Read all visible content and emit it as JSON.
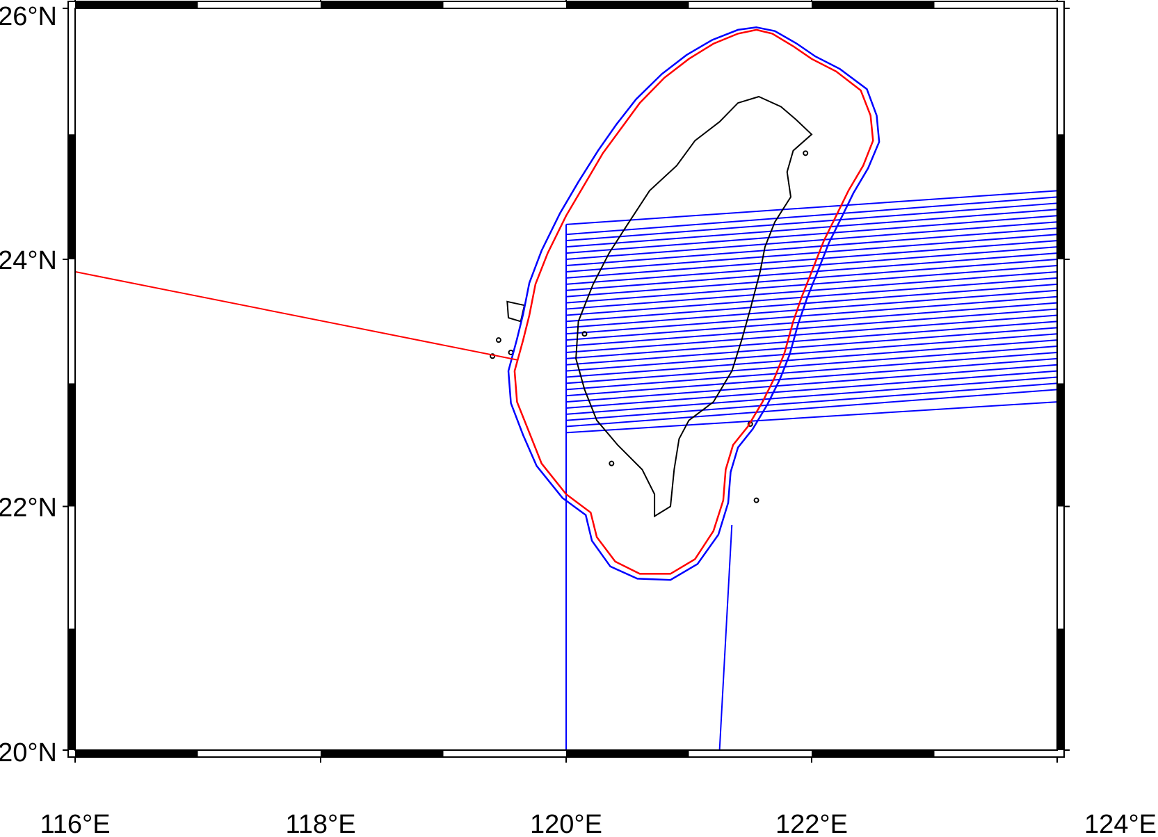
{
  "map": {
    "type": "map",
    "projection": "mercator",
    "lon_range": [
      116,
      124
    ],
    "lat_range": [
      20,
      26
    ],
    "frame_style": "checkerboard",
    "frame_color": "#000000",
    "lon_ticks": [
      {
        "lon": 116,
        "label": "116°E"
      },
      {
        "lon": 118,
        "label": "118°E"
      },
      {
        "lon": 120,
        "label": "120°E"
      },
      {
        "lon": 122,
        "label": "122°E"
      },
      {
        "lon": 124,
        "label": "124°E"
      }
    ],
    "lat_ticks": [
      {
        "lat": 20,
        "label": "20°N"
      },
      {
        "lat": 22,
        "label": "22°N"
      },
      {
        "lat": 24,
        "label": "24°N"
      },
      {
        "lat": 26,
        "label": "26°N"
      }
    ],
    "coastline": {
      "color": "#000000",
      "taiwan": [
        [
          121.57,
          25.3
        ],
        [
          121.75,
          25.22
        ],
        [
          121.87,
          25.12
        ],
        [
          122.0,
          25.0
        ],
        [
          121.85,
          24.87
        ],
        [
          121.8,
          24.7
        ],
        [
          121.83,
          24.5
        ],
        [
          121.7,
          24.3
        ],
        [
          121.62,
          24.1
        ],
        [
          121.58,
          23.9
        ],
        [
          121.5,
          23.6
        ],
        [
          121.43,
          23.35
        ],
        [
          121.35,
          23.1
        ],
        [
          121.2,
          22.85
        ],
        [
          121.0,
          22.7
        ],
        [
          120.92,
          22.55
        ],
        [
          120.88,
          22.3
        ],
        [
          120.85,
          22.0
        ],
        [
          120.72,
          21.92
        ],
        [
          120.72,
          22.1
        ],
        [
          120.62,
          22.3
        ],
        [
          120.42,
          22.5
        ],
        [
          120.25,
          22.7
        ],
        [
          120.15,
          22.95
        ],
        [
          120.08,
          23.2
        ],
        [
          120.1,
          23.5
        ],
        [
          120.22,
          23.8
        ],
        [
          120.35,
          24.05
        ],
        [
          120.5,
          24.28
        ],
        [
          120.68,
          24.55
        ],
        [
          120.9,
          24.75
        ],
        [
          121.05,
          24.95
        ],
        [
          121.25,
          25.1
        ],
        [
          121.4,
          25.25
        ]
      ],
      "penghu": [
        [
          119.52,
          23.66
        ],
        [
          119.66,
          23.63
        ],
        [
          119.63,
          23.5
        ],
        [
          119.53,
          23.53
        ]
      ],
      "small_islands": [
        [
          119.45,
          23.35
        ],
        [
          119.4,
          23.22
        ],
        [
          119.55,
          23.25
        ],
        [
          120.37,
          22.35
        ],
        [
          121.5,
          22.67
        ],
        [
          121.55,
          22.05
        ],
        [
          121.95,
          24.85
        ],
        [
          120.15,
          23.4
        ]
      ]
    },
    "red_boundary": {
      "color": "#ff0000",
      "points": [
        [
          121.55,
          25.83
        ],
        [
          121.68,
          25.8
        ],
        [
          121.85,
          25.7
        ],
        [
          122.0,
          25.6
        ],
        [
          122.2,
          25.5
        ],
        [
          122.4,
          25.35
        ],
        [
          122.48,
          25.15
        ],
        [
          122.5,
          24.95
        ],
        [
          122.42,
          24.75
        ],
        [
          122.3,
          24.55
        ],
        [
          122.2,
          24.35
        ],
        [
          122.1,
          24.15
        ],
        [
          122.0,
          23.9
        ],
        [
          121.92,
          23.7
        ],
        [
          121.85,
          23.5
        ],
        [
          121.78,
          23.25
        ],
        [
          121.7,
          23.05
        ],
        [
          121.6,
          22.85
        ],
        [
          121.48,
          22.65
        ],
        [
          121.36,
          22.5
        ],
        [
          121.3,
          22.3
        ],
        [
          121.28,
          22.05
        ],
        [
          121.2,
          21.8
        ],
        [
          121.05,
          21.57
        ],
        [
          120.85,
          21.45
        ],
        [
          120.6,
          21.45
        ],
        [
          120.4,
          21.55
        ],
        [
          120.25,
          21.75
        ],
        [
          120.2,
          21.95
        ],
        [
          120.0,
          22.1
        ],
        [
          119.8,
          22.35
        ],
        [
          119.7,
          22.6
        ],
        [
          119.6,
          22.85
        ],
        [
          119.58,
          23.1
        ],
        [
          119.65,
          23.35
        ],
        [
          119.7,
          23.55
        ],
        [
          119.75,
          23.8
        ],
        [
          119.85,
          24.05
        ],
        [
          120.0,
          24.35
        ],
        [
          120.15,
          24.6
        ],
        [
          120.3,
          24.85
        ],
        [
          120.45,
          25.05
        ],
        [
          120.6,
          25.25
        ],
        [
          120.8,
          25.45
        ],
        [
          121.0,
          25.6
        ],
        [
          121.2,
          25.72
        ],
        [
          121.4,
          25.8
        ]
      ]
    },
    "blue_boundary": {
      "color": "#0000ff",
      "points": [
        [
          121.55,
          25.85
        ],
        [
          121.7,
          25.82
        ],
        [
          121.88,
          25.72
        ],
        [
          122.03,
          25.62
        ],
        [
          122.23,
          25.52
        ],
        [
          122.45,
          25.36
        ],
        [
          122.53,
          25.15
        ],
        [
          122.55,
          24.94
        ],
        [
          122.46,
          24.73
        ],
        [
          122.34,
          24.53
        ],
        [
          122.24,
          24.33
        ],
        [
          122.14,
          24.13
        ],
        [
          122.04,
          23.88
        ],
        [
          121.96,
          23.68
        ],
        [
          121.89,
          23.48
        ],
        [
          121.82,
          23.23
        ],
        [
          121.74,
          23.03
        ],
        [
          121.64,
          22.83
        ],
        [
          121.52,
          22.63
        ],
        [
          121.4,
          22.48
        ],
        [
          121.34,
          22.28
        ],
        [
          121.32,
          22.03
        ],
        [
          121.24,
          21.77
        ],
        [
          121.07,
          21.53
        ],
        [
          120.85,
          21.4
        ],
        [
          120.58,
          21.41
        ],
        [
          120.36,
          21.51
        ],
        [
          120.21,
          21.72
        ],
        [
          120.16,
          21.93
        ],
        [
          119.97,
          22.07
        ],
        [
          119.76,
          22.33
        ],
        [
          119.65,
          22.58
        ],
        [
          119.55,
          22.84
        ],
        [
          119.53,
          23.1
        ],
        [
          119.6,
          23.36
        ],
        [
          119.65,
          23.56
        ],
        [
          119.7,
          23.81
        ],
        [
          119.8,
          24.07
        ],
        [
          119.95,
          24.37
        ],
        [
          120.1,
          24.62
        ],
        [
          120.26,
          24.87
        ],
        [
          120.41,
          25.08
        ],
        [
          120.57,
          25.28
        ],
        [
          120.78,
          25.48
        ],
        [
          120.98,
          25.63
        ],
        [
          121.19,
          25.75
        ],
        [
          121.4,
          25.83
        ]
      ]
    },
    "red_track": {
      "color": "#ff0000",
      "points": [
        [
          116.0,
          23.9
        ],
        [
          119.6,
          23.19
        ]
      ]
    },
    "blue_tracks": {
      "color": "#0000ff",
      "vertical_line": [
        [
          120.0,
          20.0
        ],
        [
          120.0,
          24.28
        ]
      ],
      "diagonal_line": [
        [
          121.25,
          20.0
        ],
        [
          121.35,
          21.85
        ]
      ],
      "west_lon": 120.0,
      "east_lon": 124.0,
      "west_lats": [
        24.28,
        24.2,
        24.15,
        24.1,
        24.05,
        24.0,
        23.95,
        23.9,
        23.85,
        23.8,
        23.75,
        23.7,
        23.65,
        23.6,
        23.55,
        23.5,
        23.45,
        23.4,
        23.35,
        23.3,
        23.25,
        23.2,
        23.15,
        23.1,
        23.05,
        23.0,
        22.95,
        22.9,
        22.85,
        22.8,
        22.75,
        22.7,
        22.65,
        22.6
      ],
      "east_lats": [
        24.55,
        24.5,
        24.45,
        24.4,
        24.35,
        24.3,
        24.25,
        24.2,
        24.15,
        24.1,
        24.05,
        24.0,
        23.95,
        23.9,
        23.85,
        23.8,
        23.75,
        23.7,
        23.65,
        23.6,
        23.55,
        23.5,
        23.45,
        23.4,
        23.35,
        23.3,
        23.25,
        23.2,
        23.15,
        23.1,
        23.05,
        23.0,
        22.95,
        22.85
      ]
    }
  }
}
